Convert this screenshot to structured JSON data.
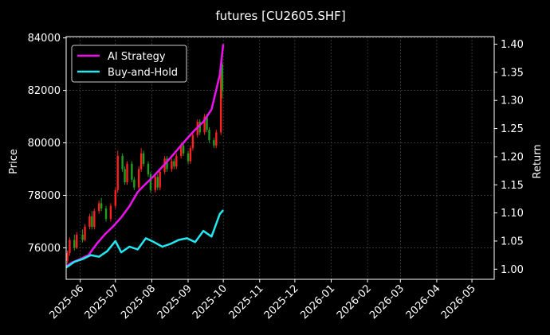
{
  "chart_data": {
    "type": "candlestick-line",
    "title": "futures [CU2605.SHF]",
    "ylabel_left": "Price",
    "ylabel_right": "Return",
    "ylim_left": [
      74800,
      84050
    ],
    "ylim_right": [
      0.982,
      1.4135
    ],
    "xlim": [
      "2025-05-20",
      "2026-05-20"
    ],
    "x_ticks": [
      "2025-06",
      "2025-07",
      "2025-08",
      "2025-09",
      "2025-10",
      "2025-11",
      "2025-12",
      "2026-01",
      "2026-02",
      "2026-03",
      "2026-04",
      "2026-05"
    ],
    "y_ticks_left": [
      76000,
      78000,
      80000,
      82000,
      84000
    ],
    "y_ticks_right": [
      1.0,
      1.05,
      1.1,
      1.15,
      1.2,
      1.25,
      1.3,
      1.35,
      1.4
    ],
    "grid": true,
    "legend_position": "top-left",
    "series": [
      {
        "name": "AI Strategy",
        "color": "#ee11ee",
        "points": [
          [
            "2025-05-20",
            1.005
          ],
          [
            "2025-05-25",
            1.012
          ],
          [
            "2025-06-01",
            1.018
          ],
          [
            "2025-06-08",
            1.025
          ],
          [
            "2025-06-15",
            1.045
          ],
          [
            "2025-06-22",
            1.062
          ],
          [
            "2025-06-29",
            1.076
          ],
          [
            "2025-07-06",
            1.092
          ],
          [
            "2025-07-13",
            1.112
          ],
          [
            "2025-07-20",
            1.137
          ],
          [
            "2025-07-27",
            1.152
          ],
          [
            "2025-08-03",
            1.166
          ],
          [
            "2025-08-10",
            1.182
          ],
          [
            "2025-08-17",
            1.198
          ],
          [
            "2025-08-24",
            1.215
          ],
          [
            "2025-08-31",
            1.232
          ],
          [
            "2025-09-07",
            1.248
          ],
          [
            "2025-09-14",
            1.262
          ],
          [
            "2025-09-21",
            1.284
          ],
          [
            "2025-09-28",
            1.345
          ],
          [
            "2025-10-01",
            1.4
          ]
        ]
      },
      {
        "name": "Buy-and-Hold",
        "color": "#22e8f2",
        "points": [
          [
            "2025-05-20",
            1.003
          ],
          [
            "2025-05-27",
            1.013
          ],
          [
            "2025-06-03",
            1.018
          ],
          [
            "2025-06-10",
            1.025
          ],
          [
            "2025-06-17",
            1.022
          ],
          [
            "2025-06-24",
            1.032
          ],
          [
            "2025-07-01",
            1.05
          ],
          [
            "2025-07-06",
            1.03
          ],
          [
            "2025-07-13",
            1.04
          ],
          [
            "2025-07-20",
            1.035
          ],
          [
            "2025-07-27",
            1.055
          ],
          [
            "2025-08-03",
            1.048
          ],
          [
            "2025-08-10",
            1.04
          ],
          [
            "2025-08-17",
            1.045
          ],
          [
            "2025-08-24",
            1.052
          ],
          [
            "2025-08-31",
            1.055
          ],
          [
            "2025-09-07",
            1.048
          ],
          [
            "2025-09-14",
            1.068
          ],
          [
            "2025-09-21",
            1.058
          ],
          [
            "2025-09-28",
            1.098
          ],
          [
            "2025-10-01",
            1.105
          ]
        ]
      }
    ],
    "candles": [
      [
        "2025-05-21",
        75500,
        75800,
        75400,
        75900
      ],
      [
        "2025-05-23",
        75800,
        76300,
        75700,
        76400
      ],
      [
        "2025-05-27",
        76300,
        76000,
        75900,
        76500
      ],
      [
        "2025-05-29",
        76000,
        76500,
        75950,
        76600
      ],
      [
        "2025-06-03",
        76500,
        76300,
        76200,
        76700
      ],
      [
        "2025-06-05",
        76300,
        76800,
        76250,
        76900
      ],
      [
        "2025-06-09",
        76800,
        77200,
        76700,
        77300
      ],
      [
        "2025-06-11",
        77200,
        76800,
        76700,
        77400
      ],
      [
        "2025-06-13",
        76800,
        77400,
        76700,
        77500
      ],
      [
        "2025-06-17",
        77400,
        77700,
        77300,
        77800
      ],
      [
        "2025-06-19",
        77700,
        77500,
        77400,
        77900
      ],
      [
        "2025-06-23",
        77500,
        77100,
        77000,
        77600
      ],
      [
        "2025-06-27",
        77100,
        77600,
        77000,
        77700
      ],
      [
        "2025-07-01",
        77600,
        78200,
        77500,
        78300
      ],
      [
        "2025-07-03",
        78200,
        79500,
        78100,
        79700
      ],
      [
        "2025-07-07",
        79500,
        79000,
        78900,
        79600
      ],
      [
        "2025-07-09",
        79000,
        78500,
        78400,
        79100
      ],
      [
        "2025-07-11",
        78500,
        79200,
        78400,
        79300
      ],
      [
        "2025-07-15",
        79200,
        78600,
        78500,
        79300
      ],
      [
        "2025-07-17",
        78600,
        78300,
        78200,
        78700
      ],
      [
        "2025-07-21",
        78300,
        79000,
        78200,
        79100
      ],
      [
        "2025-07-23",
        79000,
        79600,
        78900,
        79800
      ],
      [
        "2025-07-25",
        79600,
        79200,
        79100,
        79700
      ],
      [
        "2025-07-29",
        79200,
        78800,
        78700,
        79300
      ],
      [
        "2025-07-31",
        78800,
        78200,
        78100,
        78900
      ],
      [
        "2025-08-04",
        78200,
        78700,
        78100,
        78800
      ],
      [
        "2025-08-06",
        78700,
        78300,
        78200,
        78800
      ],
      [
        "2025-08-08",
        78300,
        78900,
        78200,
        79000
      ],
      [
        "2025-08-12",
        78900,
        79400,
        78800,
        79500
      ],
      [
        "2025-08-14",
        79400,
        79000,
        78900,
        79500
      ],
      [
        "2025-08-18",
        79000,
        79300,
        78900,
        79400
      ],
      [
        "2025-08-20",
        79300,
        79100,
        79000,
        79400
      ],
      [
        "2025-08-22",
        79100,
        79500,
        79000,
        79600
      ],
      [
        "2025-08-26",
        79500,
        79900,
        79400,
        80000
      ],
      [
        "2025-08-28",
        79900,
        79600,
        79500,
        80000
      ],
      [
        "2025-09-01",
        79600,
        79300,
        79200,
        79700
      ],
      [
        "2025-09-03",
        79300,
        79800,
        79200,
        79900
      ],
      [
        "2025-09-05",
        79800,
        80300,
        79700,
        80400
      ],
      [
        "2025-09-09",
        80300,
        80800,
        80200,
        80900
      ],
      [
        "2025-09-11",
        80800,
        80400,
        80300,
        80900
      ],
      [
        "2025-09-15",
        80400,
        81000,
        80300,
        81100
      ],
      [
        "2025-09-17",
        81000,
        80500,
        80400,
        81100
      ],
      [
        "2025-09-19",
        80500,
        80100,
        80000,
        80600
      ],
      [
        "2025-09-23",
        80100,
        79900,
        79800,
        80200
      ],
      [
        "2025-09-25",
        79900,
        80400,
        79800,
        80500
      ],
      [
        "2025-09-29",
        80400,
        83000,
        80300,
        83200
      ],
      [
        "2025-09-30",
        83000,
        82000,
        81700,
        83400
      ]
    ]
  }
}
